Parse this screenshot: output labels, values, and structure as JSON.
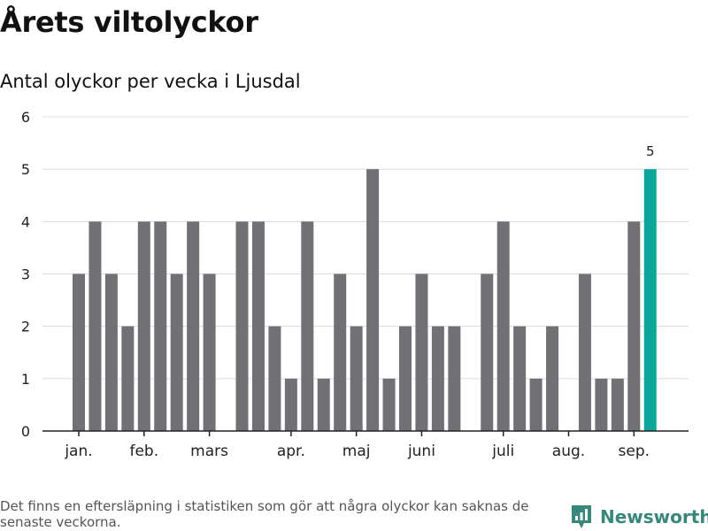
{
  "title": "Årets viltolyckor",
  "subtitle": "Antal olyckor per vecka i Ljusdal",
  "footnote": "Det finns en eftersläpning i statistiken som gör att några olyckor kan saknas de senaste veckorna.",
  "brand": {
    "name": "Newsworthy",
    "icon": "newsworthy-logo-icon"
  },
  "colors": {
    "bar": "#717074",
    "highlight": "#0aa79a",
    "grid": "#dcdcdc",
    "axis": "#222222",
    "brand": "#36877c"
  },
  "chart_data": {
    "type": "bar",
    "title": "Antal olyckor per vecka i Ljusdal",
    "xlabel": "",
    "ylabel": "",
    "ylim": [
      0,
      6
    ],
    "yticks": [
      "0",
      "1",
      "2",
      "3",
      "4",
      "5",
      "6"
    ],
    "grid": true,
    "week_start": 1,
    "values": [
      3,
      4,
      3,
      2,
      4,
      4,
      3,
      4,
      3,
      0,
      4,
      4,
      2,
      1,
      4,
      1,
      3,
      2,
      5,
      1,
      2,
      3,
      2,
      2,
      0,
      3,
      4,
      2,
      1,
      2,
      0,
      3,
      1,
      1,
      4,
      5
    ],
    "highlight_index": 35,
    "data_labels": [
      {
        "index": 35,
        "text": "5"
      }
    ],
    "month_labels": [
      {
        "label": "jan.",
        "week": 1
      },
      {
        "label": "feb.",
        "week": 5
      },
      {
        "label": "mars",
        "week": 9
      },
      {
        "label": "apr.",
        "week": 14
      },
      {
        "label": "maj",
        "week": 18
      },
      {
        "label": "juni",
        "week": 22
      },
      {
        "label": "juli",
        "week": 27
      },
      {
        "label": "aug.",
        "week": 31
      },
      {
        "label": "sep.",
        "week": 35
      }
    ]
  }
}
